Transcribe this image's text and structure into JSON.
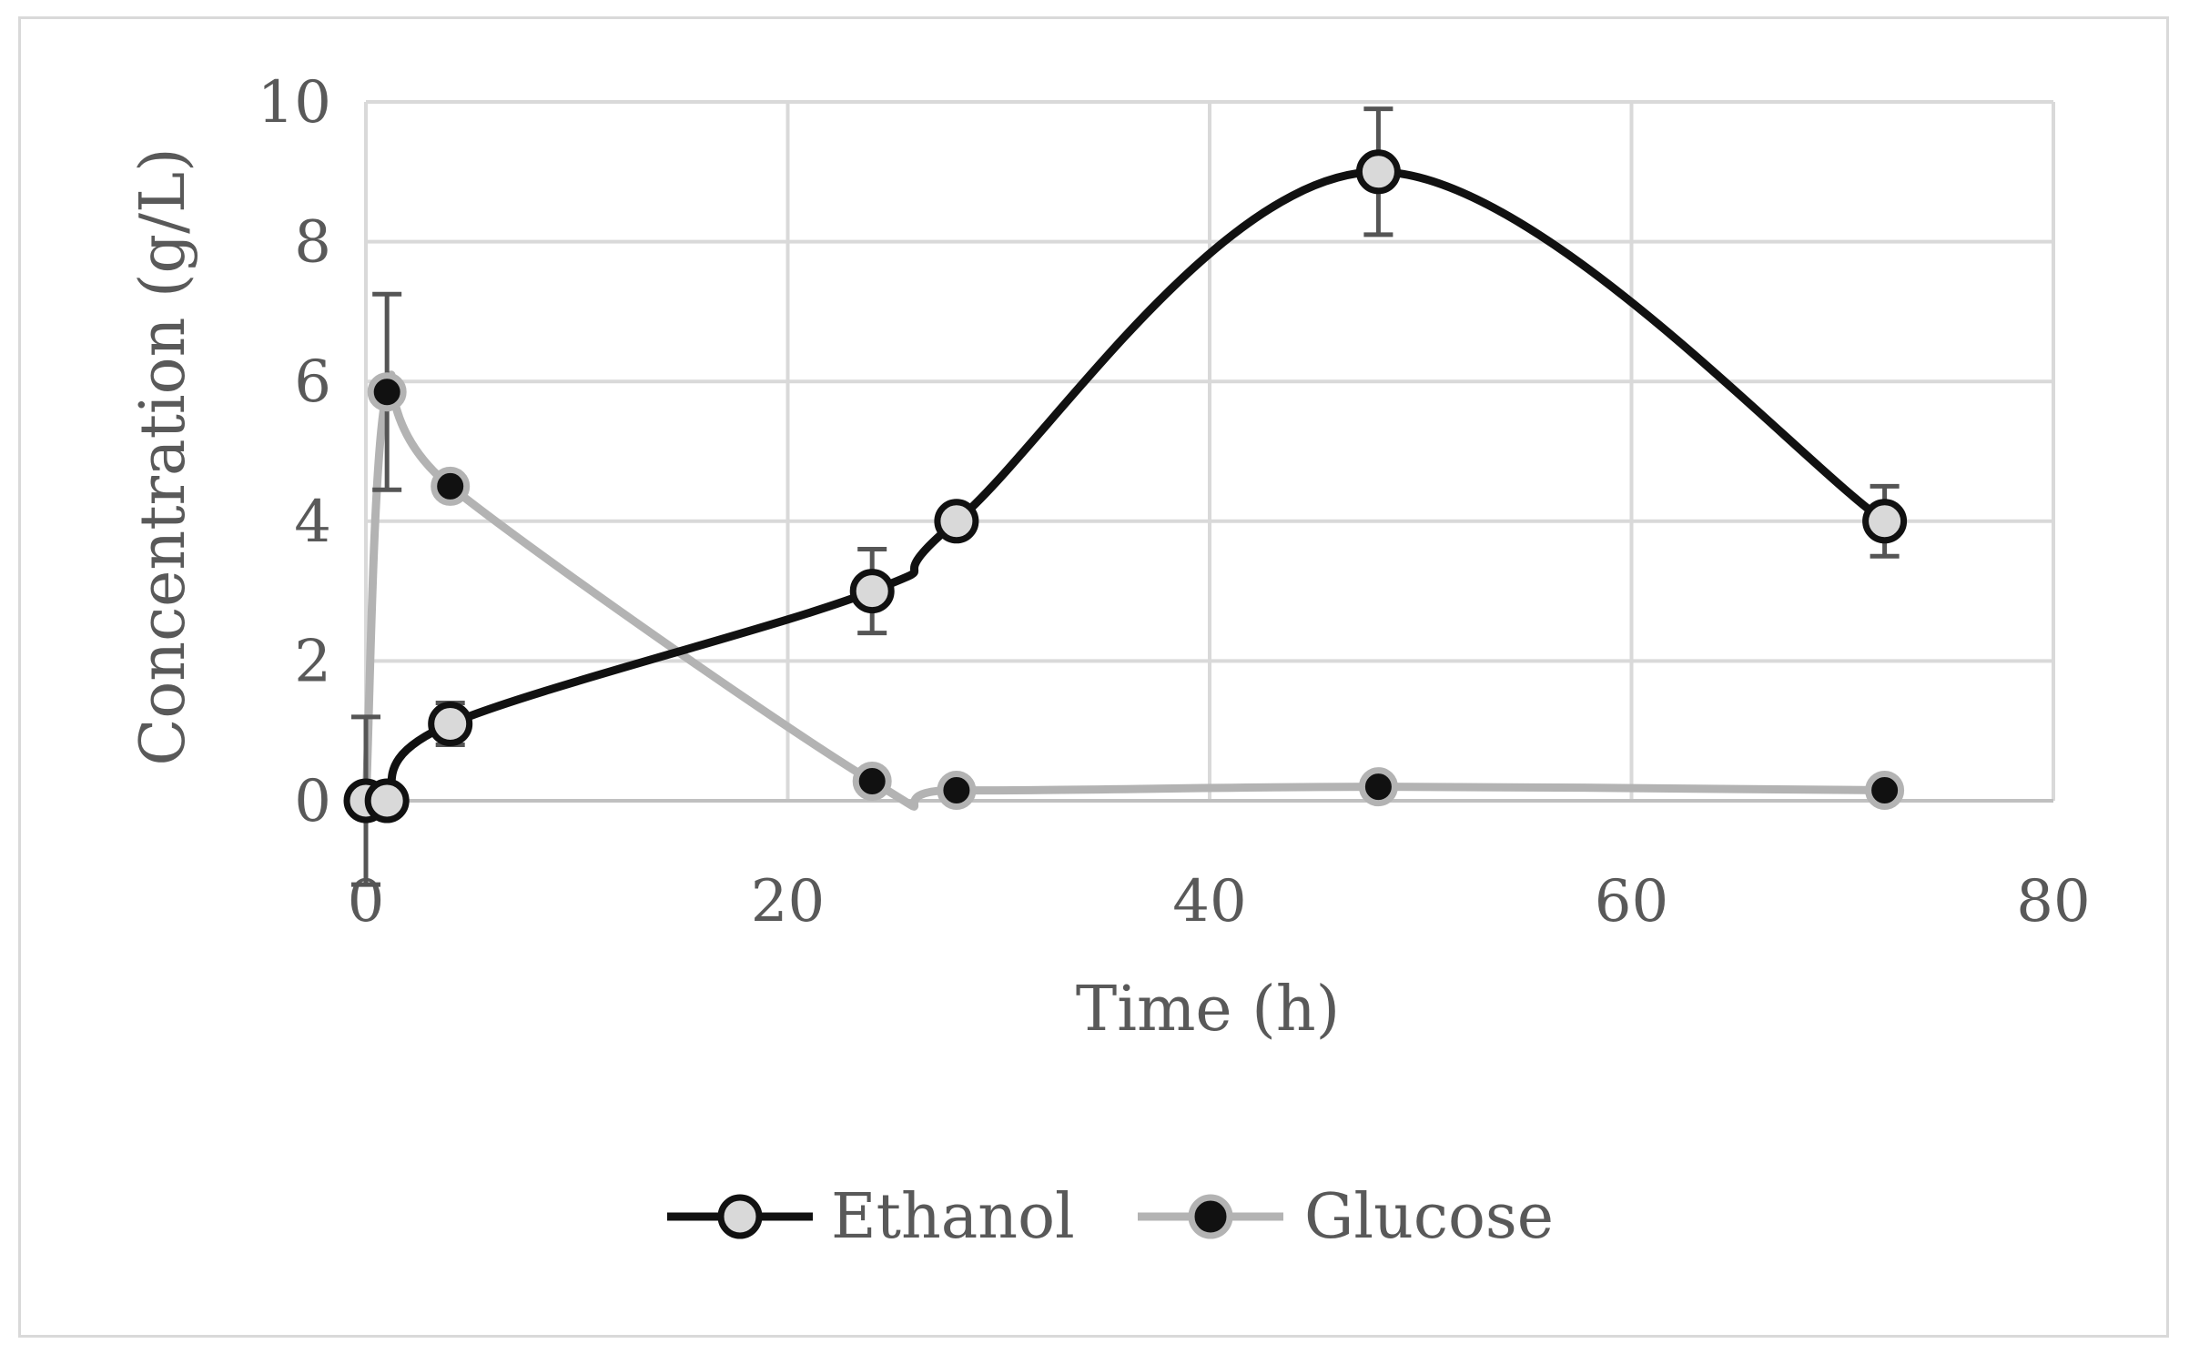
{
  "chart_data": {
    "type": "line",
    "title": "",
    "xlabel": "Time (h)",
    "ylabel": "Concentration (g/L)",
    "xlim": [
      0,
      80
    ],
    "ylim": [
      0,
      10
    ],
    "x_ticks": [
      "0",
      "20",
      "40",
      "60",
      "80"
    ],
    "y_ticks": [
      "0",
      "2",
      "4",
      "6",
      "8",
      "10"
    ],
    "grid": true,
    "legend_position": "bottom",
    "series": [
      {
        "name": "Ethanol",
        "line_color": "#111111",
        "marker_fill": "#d9d9d9",
        "marker_stroke": "#111111",
        "x": [
          0,
          1,
          4,
          24,
          28,
          48,
          72
        ],
        "y": [
          0,
          0,
          1.1,
          3.0,
          4.0,
          9.0,
          4.0
        ],
        "error": [
          0,
          0,
          0.3,
          0.6,
          0,
          0.9,
          0.5
        ]
      },
      {
        "name": "Glucose",
        "line_color": "#b3b3b3",
        "marker_fill": "#111111",
        "marker_stroke": "#b3b3b3",
        "x": [
          0,
          1,
          4,
          24,
          28,
          48,
          72
        ],
        "y": [
          0,
          5.85,
          4.5,
          0.28,
          0.15,
          0.2,
          0.15
        ],
        "error": [
          1.2,
          1.4,
          0,
          0,
          0,
          0,
          0
        ]
      }
    ]
  }
}
